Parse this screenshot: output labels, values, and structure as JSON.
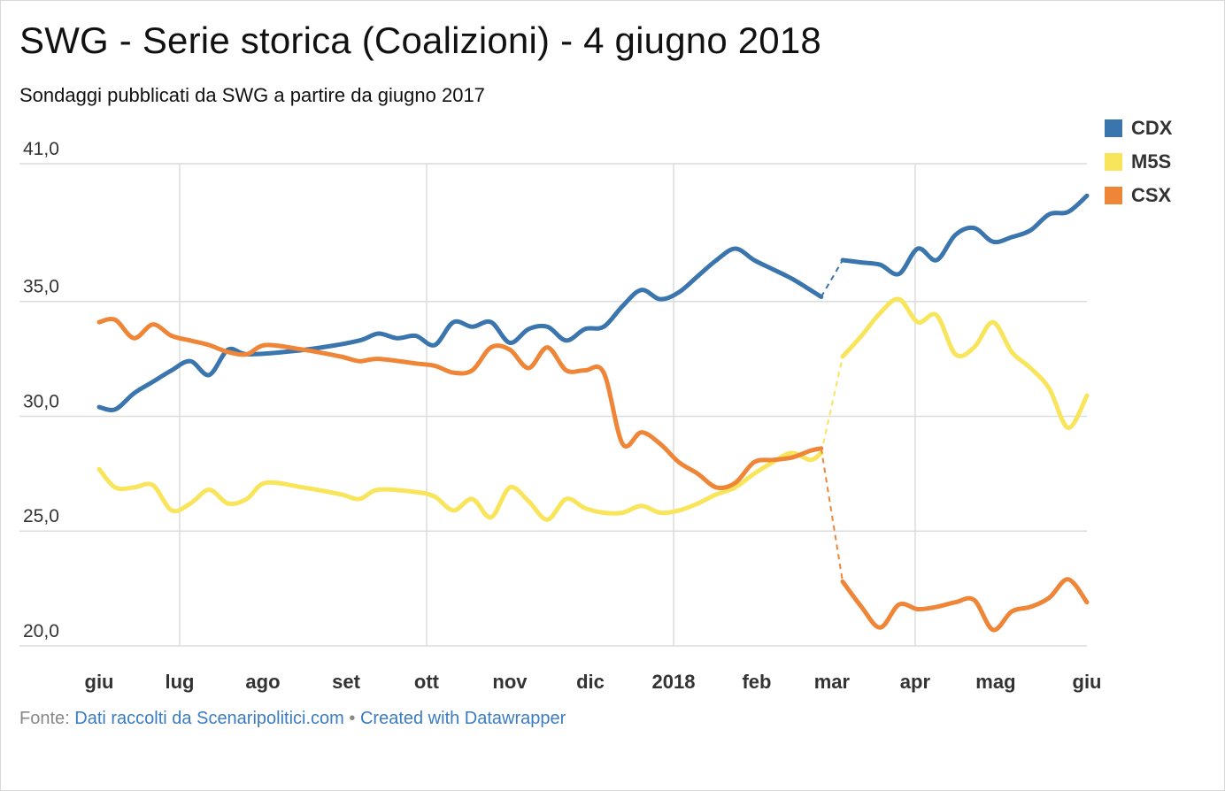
{
  "header": {
    "title": "SWG - Serie storica (Coalizioni) - 4 giugno 2018",
    "subtitle": "Sondaggi pubblicati da SWG a partire da giugno 2017"
  },
  "footer": {
    "prefix": "Fonte:",
    "source_link": "Dati raccolti da Scenaripolitici.com",
    "separator": "•",
    "credit_link": "Created with Datawrapper"
  },
  "chart_data": {
    "type": "line",
    "title": "SWG - Serie storica (Coalizioni) - 4 giugno 2018",
    "subtitle": "Sondaggi pubblicati da SWG a partire da giugno 2017",
    "x_axis": {
      "tick_labels": [
        "giu",
        "lug",
        "ago",
        "set",
        "ott",
        "nov",
        "dic",
        "2018",
        "feb",
        "mar",
        "apr",
        "mag",
        "giu"
      ],
      "range": [
        "2017-06-01",
        "2018-06-04"
      ]
    },
    "y_axis": {
      "tick_labels": [
        "41,0",
        "35,0",
        "30,0",
        "25,0",
        "20,0"
      ],
      "ylim": [
        20,
        41
      ]
    },
    "grid": true,
    "legend_placement": "top-right",
    "gap": {
      "from": "2018-02-25",
      "to": "2018-03-05",
      "style": "dashed"
    },
    "series": [
      {
        "name": "CDX",
        "color": "#3a75ad",
        "points": [
          [
            "2017-06-01",
            30.4
          ],
          [
            "2017-06-07",
            30.3
          ],
          [
            "2017-06-14",
            31.0
          ],
          [
            "2017-06-21",
            31.5
          ],
          [
            "2017-06-28",
            32.0
          ],
          [
            "2017-07-05",
            32.4
          ],
          [
            "2017-07-12",
            31.8
          ],
          [
            "2017-07-19",
            32.9
          ],
          [
            "2017-07-26",
            32.7
          ],
          [
            "2017-08-09",
            32.8
          ],
          [
            "2017-08-23",
            33.0
          ],
          [
            "2017-09-06",
            33.3
          ],
          [
            "2017-09-13",
            33.6
          ],
          [
            "2017-09-20",
            33.4
          ],
          [
            "2017-09-27",
            33.5
          ],
          [
            "2017-10-04",
            33.1
          ],
          [
            "2017-10-11",
            34.1
          ],
          [
            "2017-10-18",
            33.9
          ],
          [
            "2017-10-25",
            34.1
          ],
          [
            "2017-11-01",
            33.2
          ],
          [
            "2017-11-08",
            33.8
          ],
          [
            "2017-11-15",
            33.9
          ],
          [
            "2017-11-22",
            33.3
          ],
          [
            "2017-11-29",
            33.8
          ],
          [
            "2017-12-06",
            33.9
          ],
          [
            "2017-12-13",
            34.8
          ],
          [
            "2017-12-20",
            35.5
          ],
          [
            "2017-12-27",
            35.1
          ],
          [
            "2018-01-03",
            35.4
          ],
          [
            "2018-01-10",
            36.1
          ],
          [
            "2018-01-17",
            36.8
          ],
          [
            "2018-01-24",
            37.3
          ],
          [
            "2018-01-31",
            36.8
          ],
          [
            "2018-02-07",
            36.4
          ],
          [
            "2018-02-14",
            36.0
          ],
          [
            "2018-02-21",
            35.5
          ],
          [
            "2018-02-25",
            35.2
          ],
          [
            "2018-03-05",
            36.8
          ],
          [
            "2018-03-12",
            36.7
          ],
          [
            "2018-03-19",
            36.6
          ],
          [
            "2018-03-26",
            36.2
          ],
          [
            "2018-04-02",
            37.3
          ],
          [
            "2018-04-09",
            36.8
          ],
          [
            "2018-04-16",
            37.9
          ],
          [
            "2018-04-23",
            38.2
          ],
          [
            "2018-04-30",
            37.6
          ],
          [
            "2018-05-07",
            37.8
          ],
          [
            "2018-05-14",
            38.1
          ],
          [
            "2018-05-21",
            38.8
          ],
          [
            "2018-05-28",
            38.9
          ],
          [
            "2018-06-04",
            39.6
          ]
        ]
      },
      {
        "name": "M5S",
        "color": "#f8e55b",
        "points": [
          [
            "2017-06-01",
            27.7
          ],
          [
            "2017-06-07",
            26.9
          ],
          [
            "2017-06-14",
            26.9
          ],
          [
            "2017-06-21",
            27.0
          ],
          [
            "2017-06-28",
            25.9
          ],
          [
            "2017-07-05",
            26.2
          ],
          [
            "2017-07-12",
            26.8
          ],
          [
            "2017-07-19",
            26.2
          ],
          [
            "2017-07-26",
            26.4
          ],
          [
            "2017-08-02",
            27.1
          ],
          [
            "2017-08-16",
            26.9
          ],
          [
            "2017-08-30",
            26.6
          ],
          [
            "2017-09-06",
            26.4
          ],
          [
            "2017-09-13",
            26.8
          ],
          [
            "2017-09-27",
            26.7
          ],
          [
            "2017-10-04",
            26.5
          ],
          [
            "2017-10-11",
            25.9
          ],
          [
            "2017-10-18",
            26.4
          ],
          [
            "2017-10-25",
            25.6
          ],
          [
            "2017-11-01",
            26.9
          ],
          [
            "2017-11-08",
            26.3
          ],
          [
            "2017-11-15",
            25.5
          ],
          [
            "2017-11-22",
            26.4
          ],
          [
            "2017-11-29",
            26.0
          ],
          [
            "2017-12-06",
            25.8
          ],
          [
            "2017-12-13",
            25.8
          ],
          [
            "2017-12-20",
            26.1
          ],
          [
            "2017-12-27",
            25.8
          ],
          [
            "2018-01-03",
            25.9
          ],
          [
            "2018-01-10",
            26.2
          ],
          [
            "2018-01-17",
            26.6
          ],
          [
            "2018-01-24",
            26.9
          ],
          [
            "2018-01-31",
            27.5
          ],
          [
            "2018-02-07",
            28.0
          ],
          [
            "2018-02-14",
            28.4
          ],
          [
            "2018-02-21",
            28.1
          ],
          [
            "2018-02-25",
            28.4
          ],
          [
            "2018-03-05",
            32.6
          ],
          [
            "2018-03-12",
            33.5
          ],
          [
            "2018-03-19",
            34.5
          ],
          [
            "2018-03-26",
            35.1
          ],
          [
            "2018-04-02",
            34.1
          ],
          [
            "2018-04-09",
            34.4
          ],
          [
            "2018-04-16",
            32.7
          ],
          [
            "2018-04-23",
            33.0
          ],
          [
            "2018-04-30",
            34.1
          ],
          [
            "2018-05-07",
            32.8
          ],
          [
            "2018-05-14",
            32.1
          ],
          [
            "2018-05-21",
            31.2
          ],
          [
            "2018-05-28",
            29.5
          ],
          [
            "2018-06-04",
            30.9
          ]
        ]
      },
      {
        "name": "CSX",
        "color": "#ee8537",
        "points": [
          [
            "2017-06-01",
            34.1
          ],
          [
            "2017-06-07",
            34.2
          ],
          [
            "2017-06-14",
            33.4
          ],
          [
            "2017-06-21",
            34.0
          ],
          [
            "2017-06-28",
            33.5
          ],
          [
            "2017-07-05",
            33.3
          ],
          [
            "2017-07-12",
            33.1
          ],
          [
            "2017-07-19",
            32.8
          ],
          [
            "2017-07-26",
            32.7
          ],
          [
            "2017-08-02",
            33.1
          ],
          [
            "2017-08-16",
            32.9
          ],
          [
            "2017-08-30",
            32.6
          ],
          [
            "2017-09-06",
            32.4
          ],
          [
            "2017-09-13",
            32.5
          ],
          [
            "2017-09-27",
            32.3
          ],
          [
            "2017-10-04",
            32.2
          ],
          [
            "2017-10-11",
            31.9
          ],
          [
            "2017-10-18",
            32.0
          ],
          [
            "2017-10-25",
            33.0
          ],
          [
            "2017-11-01",
            32.9
          ],
          [
            "2017-11-08",
            32.1
          ],
          [
            "2017-11-15",
            33.0
          ],
          [
            "2017-11-22",
            32.0
          ],
          [
            "2017-11-29",
            32.0
          ],
          [
            "2017-12-06",
            31.9
          ],
          [
            "2017-12-13",
            28.8
          ],
          [
            "2017-12-20",
            29.3
          ],
          [
            "2017-12-27",
            28.8
          ],
          [
            "2018-01-03",
            28.0
          ],
          [
            "2018-01-10",
            27.5
          ],
          [
            "2018-01-17",
            26.9
          ],
          [
            "2018-01-24",
            27.1
          ],
          [
            "2018-01-31",
            28.0
          ],
          [
            "2018-02-07",
            28.1
          ],
          [
            "2018-02-14",
            28.2
          ],
          [
            "2018-02-21",
            28.5
          ],
          [
            "2018-02-25",
            28.6
          ],
          [
            "2018-03-05",
            22.8
          ],
          [
            "2018-03-12",
            21.7
          ],
          [
            "2018-03-19",
            20.8
          ],
          [
            "2018-03-26",
            21.8
          ],
          [
            "2018-04-02",
            21.6
          ],
          [
            "2018-04-09",
            21.7
          ],
          [
            "2018-04-16",
            21.9
          ],
          [
            "2018-04-23",
            22.0
          ],
          [
            "2018-04-30",
            20.7
          ],
          [
            "2018-05-07",
            21.5
          ],
          [
            "2018-05-14",
            21.7
          ],
          [
            "2018-05-21",
            22.1
          ],
          [
            "2018-05-28",
            22.9
          ],
          [
            "2018-06-04",
            21.9
          ]
        ]
      }
    ]
  }
}
